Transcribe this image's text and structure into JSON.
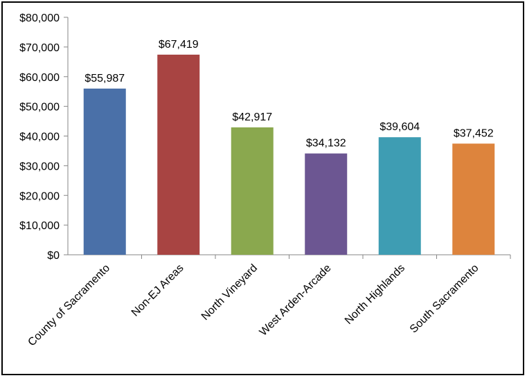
{
  "chart_data": {
    "type": "bar",
    "title": "",
    "xlabel": "",
    "ylabel": "",
    "categories": [
      "County of Sacramento",
      "Non-EJ Areas",
      "North Vineyard",
      "West Arden-Arcade",
      "North Highlands",
      "South Sacramento"
    ],
    "values": [
      55987,
      67419,
      42917,
      34132,
      39604,
      37452
    ],
    "value_labels": [
      "$55,987",
      "$67,419",
      "$42,917",
      "$34,132",
      "$39,604",
      "$37,452"
    ],
    "colors": [
      "#4a70a8",
      "#a84442",
      "#8aa84e",
      "#6c5692",
      "#3e9db3",
      "#dd843d"
    ],
    "ylim": [
      0,
      80000
    ],
    "yticks": [
      0,
      10000,
      20000,
      30000,
      40000,
      50000,
      60000,
      70000,
      80000
    ],
    "ytick_labels": [
      "$0",
      "$10,000",
      "$20,000",
      "$30,000",
      "$40,000",
      "$50,000",
      "$60,000",
      "$70,000",
      "$80,000"
    ],
    "grid": false,
    "legend": "none"
  }
}
